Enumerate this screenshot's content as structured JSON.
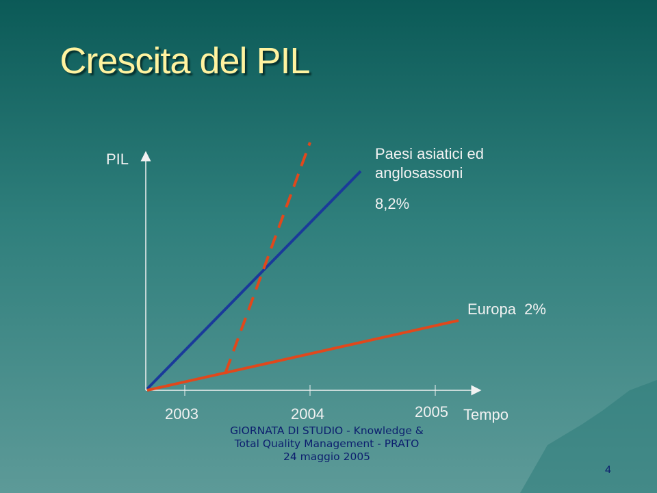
{
  "title": "Crescita del PIL",
  "diagram": {
    "y_axis_label": "PIL",
    "x_axis_label": "Tempo",
    "x_ticks": [
      "2003",
      "2004",
      "2005"
    ],
    "series_labels": [
      "Paesi asiatici ed anglosassoni",
      "8,2%",
      "Europa  2%"
    ]
  },
  "footer": {
    "text": "GIORNATA DI STUDIO - Knowledge & Total Quality Management - PRATO 24 maggio 2005",
    "page": "4"
  }
}
